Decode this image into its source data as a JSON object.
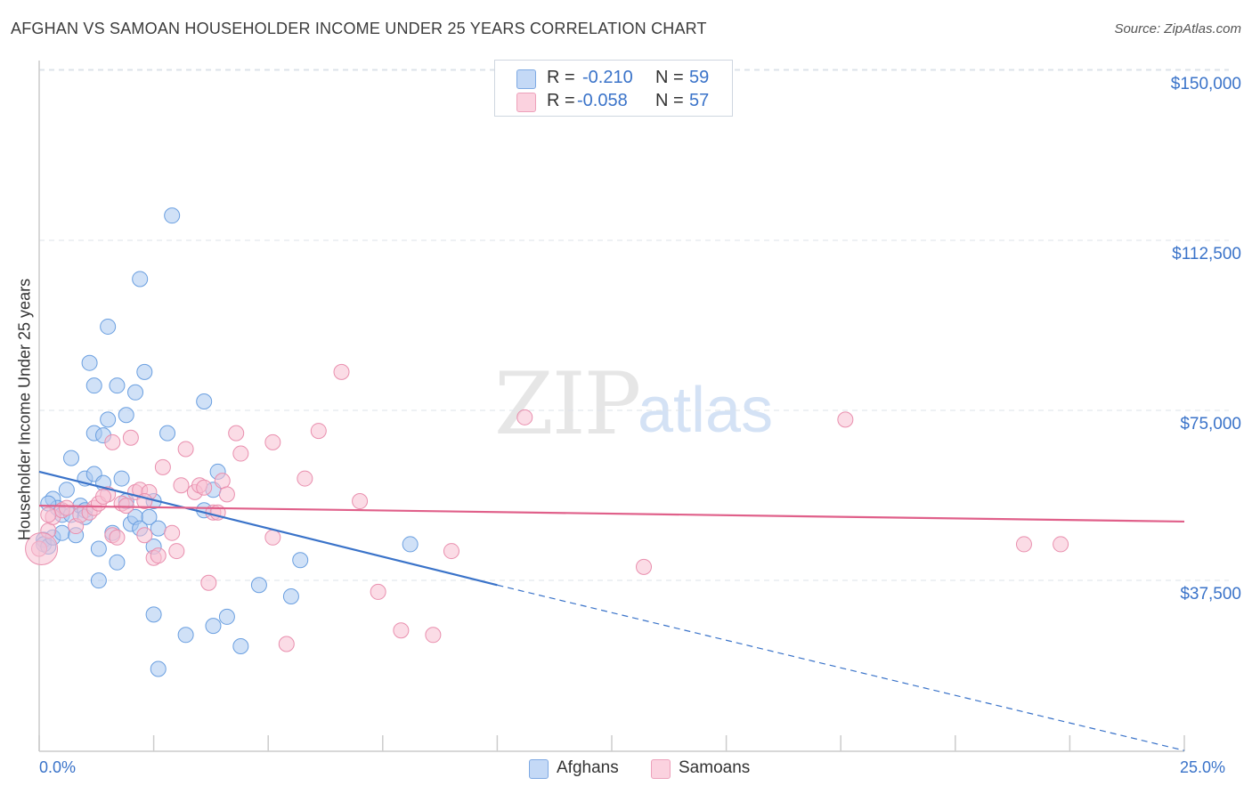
{
  "title": "AFGHAN VS SAMOAN HOUSEHOLDER INCOME UNDER 25 YEARS CORRELATION CHART",
  "source": "Source: ZipAtlas.com",
  "watermark": {
    "zip": "ZIP",
    "atlas": "atlas"
  },
  "legend": {
    "rows": [
      {
        "r_label": "R =",
        "r_value": "-0.210",
        "n_label": "N =",
        "n_value": "59",
        "color": "#aac8f0"
      },
      {
        "r_label": "R =",
        "r_value": "-0.058",
        "n_label": "N =",
        "n_value": "57",
        "color": "#f8c0d2"
      }
    ]
  },
  "bottom_legend": [
    {
      "label": "Afghans",
      "color": "#aac8f0"
    },
    {
      "label": "Samoans",
      "color": "#f8c0d2"
    }
  ],
  "chart_data": {
    "type": "scatter",
    "ylabel": "Householder Income Under 25 years",
    "xlabel": "",
    "xlim": [
      0,
      25
    ],
    "ylim": [
      0,
      157500
    ],
    "x_tick_labels": [
      "0.0%",
      "25.0%"
    ],
    "y_tick_labels": [
      {
        "value": 150000,
        "label": "$150,000"
      },
      {
        "value": 112500,
        "label": "$112,500"
      },
      {
        "value": 75000,
        "label": "$75,000"
      },
      {
        "value": 37500,
        "label": "$37,500"
      }
    ],
    "grid": true,
    "colors": {
      "afghans": "#3a73c9",
      "samoans": "#e0608a"
    },
    "series": [
      {
        "name": "Afghans",
        "color": "#aac8f0",
        "stroke": "#6a9fe0",
        "trend": {
          "x0": 0,
          "y0": 65000,
          "x1": 10,
          "y1": 40000,
          "dash_to_x": 25,
          "dash_to_y": 3500
        },
        "points": [
          [
            0.1,
            50000
          ],
          [
            0.1,
            49000
          ],
          [
            0.2,
            48500
          ],
          [
            0.3,
            50500
          ],
          [
            0.3,
            59000
          ],
          [
            0.4,
            57000
          ],
          [
            0.5,
            55500
          ],
          [
            0.5,
            51500
          ],
          [
            0.6,
            61000
          ],
          [
            0.7,
            68000
          ],
          [
            0.7,
            55500
          ],
          [
            0.8,
            51000
          ],
          [
            0.9,
            57500
          ],
          [
            1.0,
            56500
          ],
          [
            1.0,
            55000
          ],
          [
            1.0,
            63500
          ],
          [
            1.1,
            89000
          ],
          [
            1.2,
            64500
          ],
          [
            1.2,
            73500
          ],
          [
            1.2,
            84000
          ],
          [
            1.3,
            41000
          ],
          [
            1.3,
            48000
          ],
          [
            1.4,
            73000
          ],
          [
            1.4,
            62500
          ],
          [
            1.5,
            97000
          ],
          [
            1.5,
            76500
          ],
          [
            1.6,
            51500
          ],
          [
            1.7,
            84000
          ],
          [
            1.7,
            45000
          ],
          [
            1.8,
            63500
          ],
          [
            1.9,
            77500
          ],
          [
            1.9,
            58500
          ],
          [
            2.0,
            53500
          ],
          [
            2.1,
            55000
          ],
          [
            2.1,
            82500
          ],
          [
            2.2,
            107500
          ],
          [
            2.2,
            52500
          ],
          [
            2.3,
            87000
          ],
          [
            2.4,
            55000
          ],
          [
            2.5,
            58500
          ],
          [
            2.5,
            48500
          ],
          [
            2.5,
            33500
          ],
          [
            2.6,
            52500
          ],
          [
            2.6,
            21500
          ],
          [
            2.8,
            73500
          ],
          [
            2.9,
            121500
          ],
          [
            3.2,
            29000
          ],
          [
            3.6,
            56500
          ],
          [
            3.6,
            80500
          ],
          [
            3.8,
            61000
          ],
          [
            3.8,
            31000
          ],
          [
            3.9,
            65000
          ],
          [
            4.1,
            33000
          ],
          [
            4.4,
            26500
          ],
          [
            4.8,
            40000
          ],
          [
            5.5,
            37500
          ],
          [
            5.7,
            45500
          ],
          [
            8.1,
            49000
          ],
          [
            0.2,
            58000
          ]
        ]
      },
      {
        "name": "Samoans",
        "color": "#f8c0d2",
        "stroke": "#e98fae",
        "trend": {
          "x0": 0,
          "y0": 57500,
          "x1": 25,
          "y1": 54000
        },
        "points": [
          [
            0.0,
            48000
          ],
          [
            0.2,
            52000
          ],
          [
            0.3,
            55000
          ],
          [
            0.5,
            56500
          ],
          [
            0.6,
            57000
          ],
          [
            0.8,
            53000
          ],
          [
            0.9,
            55500
          ],
          [
            1.1,
            56000
          ],
          [
            1.2,
            57000
          ],
          [
            1.3,
            58000
          ],
          [
            1.5,
            60000
          ],
          [
            1.6,
            71500
          ],
          [
            1.6,
            51000
          ],
          [
            1.7,
            50500
          ],
          [
            1.8,
            58000
          ],
          [
            1.9,
            57500
          ],
          [
            2.0,
            72500
          ],
          [
            2.1,
            60500
          ],
          [
            2.2,
            61000
          ],
          [
            2.3,
            51000
          ],
          [
            2.4,
            60500
          ],
          [
            2.5,
            46000
          ],
          [
            2.6,
            46500
          ],
          [
            2.7,
            66000
          ],
          [
            2.9,
            51500
          ],
          [
            3.0,
            47500
          ],
          [
            3.1,
            62000
          ],
          [
            3.2,
            70000
          ],
          [
            3.4,
            60500
          ],
          [
            3.5,
            62000
          ],
          [
            3.6,
            61500
          ],
          [
            3.7,
            40500
          ],
          [
            3.8,
            56000
          ],
          [
            3.9,
            56000
          ],
          [
            4.0,
            63000
          ],
          [
            4.1,
            60000
          ],
          [
            4.3,
            73500
          ],
          [
            4.4,
            69000
          ],
          [
            5.1,
            71500
          ],
          [
            5.1,
            50500
          ],
          [
            5.4,
            27000
          ],
          [
            5.8,
            63500
          ],
          [
            6.1,
            74000
          ],
          [
            6.6,
            87000
          ],
          [
            7.0,
            58500
          ],
          [
            7.4,
            38500
          ],
          [
            7.9,
            30000
          ],
          [
            8.6,
            29000
          ],
          [
            9.0,
            47500
          ],
          [
            10.6,
            77000
          ],
          [
            13.2,
            44000
          ],
          [
            17.6,
            76500
          ],
          [
            21.5,
            49000
          ],
          [
            22.3,
            49000
          ],
          [
            0.2,
            55500
          ],
          [
            1.4,
            59500
          ],
          [
            2.3,
            58500
          ]
        ]
      }
    ]
  }
}
